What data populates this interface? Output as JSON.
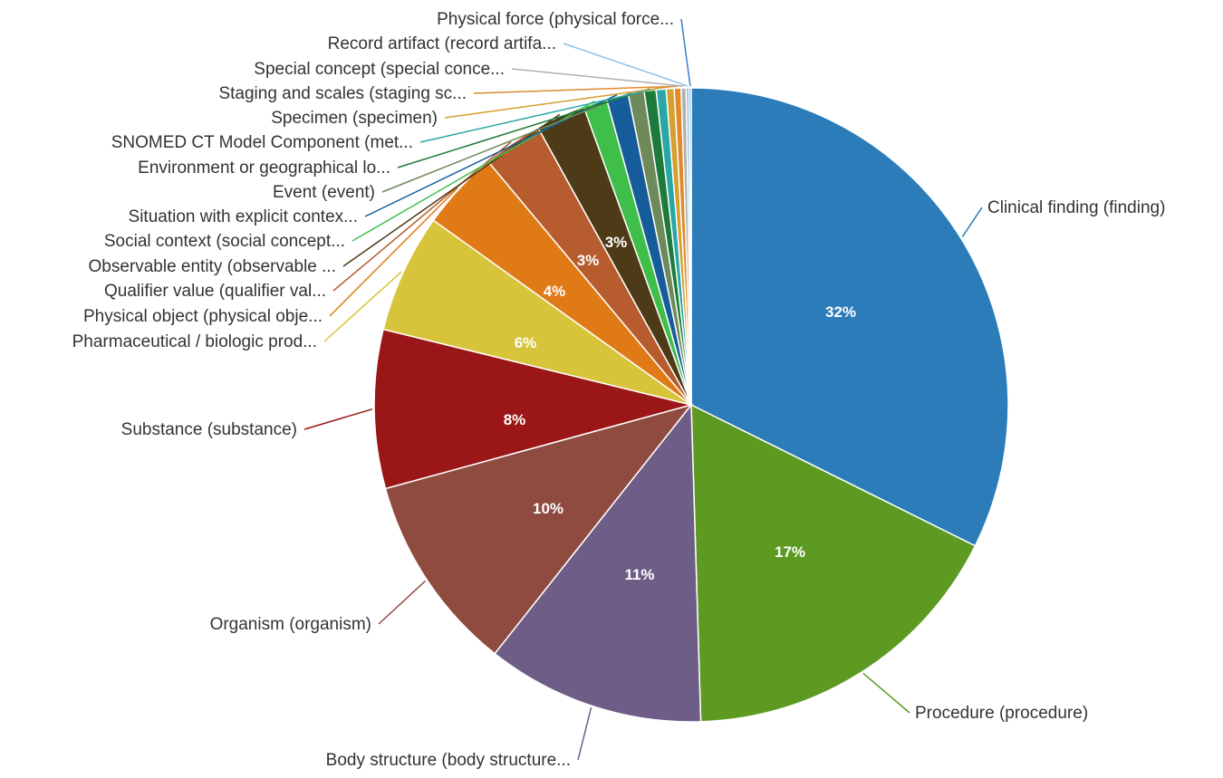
{
  "chart_data": {
    "type": "pie",
    "title": "",
    "slices": [
      {
        "label": "Clinical finding (finding)",
        "value": 32,
        "percent_label": "32%",
        "color": "#2b7cb8"
      },
      {
        "label": "Procedure (procedure)",
        "value": 17,
        "percent_label": "17%",
        "color": "#5d9a22"
      },
      {
        "label": "Body structure (body structure...",
        "value": 11,
        "percent_label": "11%",
        "color": "#6e5d86"
      },
      {
        "label": "Organism (organism)",
        "value": 10,
        "percent_label": "10%",
        "color": "#8f4b3f"
      },
      {
        "label": "Substance (substance)",
        "value": 8,
        "percent_label": "8%",
        "color": "#9b1616"
      },
      {
        "label": "Pharmaceutical / biologic prod...",
        "value": 6,
        "percent_label": "6%",
        "color": "#d8c43a"
      },
      {
        "label": "Physical object (physical obje...",
        "value": 4,
        "percent_label": "4%",
        "color": "#e07a16"
      },
      {
        "label": "Qualifier value (qualifier val...",
        "value": 3,
        "percent_label": "3%",
        "color": "#b65c2e"
      },
      {
        "label": "Observable entity (observable ...",
        "value": 2.5,
        "percent_label": "3%",
        "color": "#4d3a17"
      },
      {
        "label": "Social context (social concept...",
        "value": 1.2,
        "percent_label": "",
        "color": "#3fbf4a"
      },
      {
        "label": "Situation with explicit contex...",
        "value": 1.1,
        "percent_label": "",
        "color": "#175c9a"
      },
      {
        "label": "Event (event)",
        "value": 0.8,
        "percent_label": "",
        "color": "#6f8a5a"
      },
      {
        "label": "Environment or geographical lo...",
        "value": 0.6,
        "percent_label": "",
        "color": "#1c7a3a"
      },
      {
        "label": "SNOMED CT Model Component (met...",
        "value": 0.5,
        "percent_label": "",
        "color": "#2aa6a6"
      },
      {
        "label": "Specimen (specimen)",
        "value": 0.4,
        "percent_label": "",
        "color": "#d6a030"
      },
      {
        "label": "Staging and scales (staging sc...",
        "value": 0.35,
        "percent_label": "",
        "color": "#e08a2e"
      },
      {
        "label": "Special concept (special conce...",
        "value": 0.25,
        "percent_label": "",
        "color": "#b0b0b0"
      },
      {
        "label": "Record artifact (record artifa...",
        "value": 0.15,
        "percent_label": "",
        "color": "#8fc3e8"
      },
      {
        "label": "Physical force (physical force...",
        "value": 0.1,
        "percent_label": "",
        "color": "#3a7fd0"
      }
    ]
  }
}
